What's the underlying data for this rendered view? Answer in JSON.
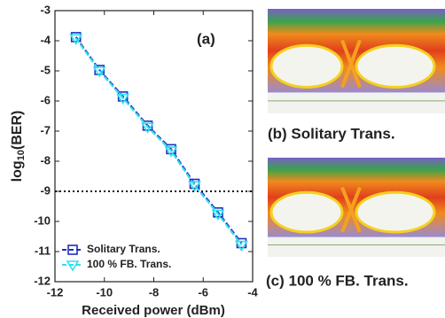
{
  "chart_data": {
    "type": "line",
    "xlabel": "Received power (dBm)",
    "ylabel": {
      "base": "log",
      "subscript": "10",
      "rest": "(BER)"
    },
    "annotation": "(a)",
    "x": [
      -11.15,
      -10.2,
      -9.25,
      -8.25,
      -7.3,
      -6.35,
      -5.4,
      -4.45
    ],
    "series": [
      {
        "name": "Solitary Trans.",
        "color": "#1f2fbf",
        "marker": "square",
        "values": [
          -3.88,
          -4.97,
          -5.85,
          -6.82,
          -7.6,
          -8.75,
          -9.7,
          -10.72
        ]
      },
      {
        "name": "100 % FB. Trans.",
        "color": "#2ee0f0",
        "marker": "triangle",
        "values": [
          -3.92,
          -5.0,
          -5.9,
          -6.86,
          -7.65,
          -8.8,
          -9.75,
          -10.78
        ]
      }
    ],
    "threshold": -9,
    "xlim": [
      -12,
      -4
    ],
    "xticks": [
      -12,
      -10,
      -8,
      -6,
      -4
    ],
    "ylim": [
      -12,
      -3
    ],
    "yticks": [
      -12,
      -11,
      -10,
      -9,
      -8,
      -7,
      -6,
      -5,
      -4,
      -3
    ],
    "legend": "lower left"
  },
  "panels": [
    {
      "caption": "(b) Solitary Trans."
    },
    {
      "caption": "(c) 100 % FB. Trans."
    }
  ]
}
